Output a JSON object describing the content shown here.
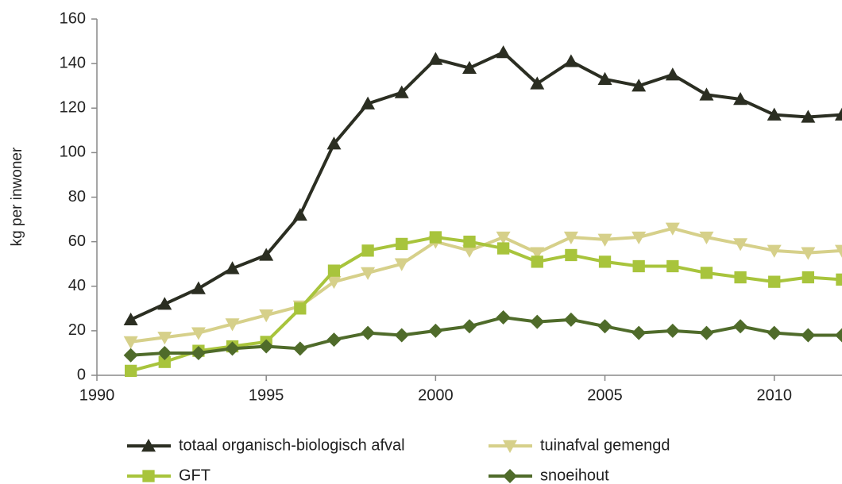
{
  "chart_data": {
    "type": "line",
    "y_label": "kg per inwoner",
    "x": [
      1991,
      1992,
      1993,
      1994,
      1995,
      1996,
      1997,
      1998,
      1999,
      2000,
      2001,
      2002,
      2003,
      2004,
      2005,
      2006,
      2007,
      2008,
      2009,
      2010,
      2011,
      2012
    ],
    "series": [
      {
        "name": "totaal organisch-biologisch afval",
        "color": "#2b2e22",
        "marker": "triangle-up",
        "values": [
          25,
          32,
          39,
          48,
          54,
          72,
          104,
          122,
          127,
          142,
          138,
          145,
          131,
          141,
          133,
          130,
          135,
          126,
          124,
          117,
          116,
          117
        ]
      },
      {
        "name": "tuinafval gemengd",
        "color": "#d6d08a",
        "marker": "triangle-down",
        "values": [
          15,
          17,
          19,
          23,
          27,
          31,
          42,
          46,
          50,
          60,
          56,
          62,
          55,
          62,
          61,
          62,
          66,
          62,
          59,
          56,
          55,
          56
        ]
      },
      {
        "name": "GFT",
        "color": "#a8c43c",
        "marker": "square",
        "values": [
          2,
          6,
          11,
          13,
          15,
          30,
          47,
          56,
          59,
          62,
          60,
          57,
          51,
          54,
          51,
          49,
          49,
          46,
          44,
          42,
          44,
          43
        ]
      },
      {
        "name": "snoeihout",
        "color": "#4f6b2a",
        "marker": "diamond",
        "values": [
          9,
          10,
          10,
          12,
          13,
          12,
          16,
          19,
          18,
          20,
          22,
          26,
          24,
          25,
          22,
          19,
          20,
          19,
          22,
          19,
          18,
          18
        ]
      }
    ],
    "xlim": [
      1990,
      2012
    ],
    "xticks": [
      1990,
      1995,
      2000,
      2005,
      2010
    ],
    "ylim": [
      0,
      160
    ],
    "yticks": [
      0,
      20,
      40,
      60,
      80,
      100,
      120,
      140,
      160
    ],
    "grid": false,
    "legend": "bottom"
  }
}
